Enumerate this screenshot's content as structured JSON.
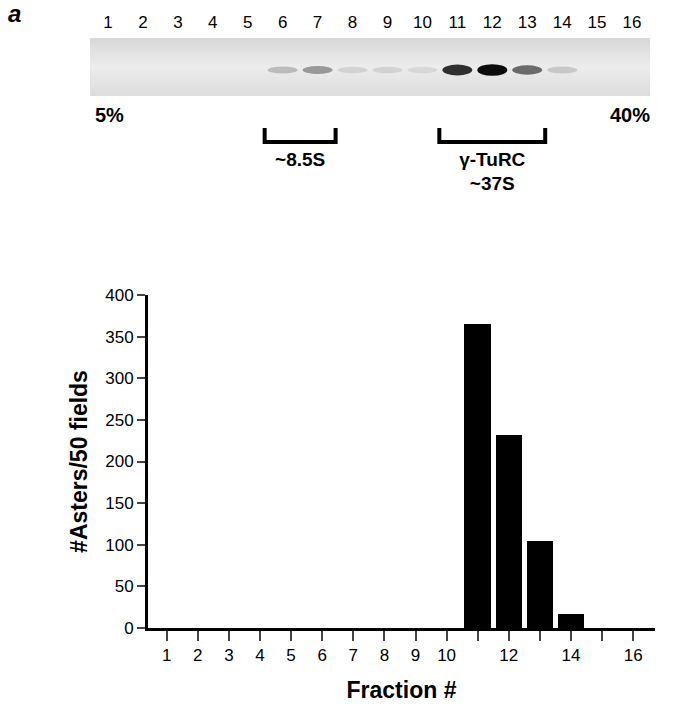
{
  "panel_label": "a",
  "blot": {
    "lanes": [
      "1",
      "2",
      "3",
      "4",
      "5",
      "6",
      "7",
      "8",
      "9",
      "10",
      "11",
      "12",
      "13",
      "14",
      "15",
      "16"
    ],
    "band_intensity": [
      0,
      0,
      0,
      0,
      0,
      0.2,
      0.35,
      0.1,
      0.1,
      0.08,
      0.8,
      0.95,
      0.55,
      0.15,
      0,
      0
    ],
    "gradient": {
      "start": "5%",
      "end": "40%"
    },
    "brackets": [
      {
        "lines": [
          "~8.5S"
        ],
        "from": 6,
        "to": 7
      },
      {
        "lines": [
          "γ-TuRC",
          "~37S"
        ],
        "from": 11,
        "to": 13
      }
    ]
  },
  "chart_data": {
    "type": "bar",
    "x": [
      11,
      12,
      13,
      14
    ],
    "values": [
      365,
      232,
      105,
      17
    ],
    "color": "#000000",
    "x_label": "Fraction #",
    "y_label": "#Asters/50 fields",
    "xlim": [
      0.4,
      16.7
    ],
    "xticks": [
      1,
      2,
      3,
      4,
      5,
      6,
      7,
      8,
      9,
      10,
      12,
      14,
      16
    ],
    "ylim": [
      0,
      400
    ],
    "yticks": [
      0,
      50,
      100,
      150,
      200,
      250,
      300,
      350,
      400
    ],
    "grid": false
  }
}
